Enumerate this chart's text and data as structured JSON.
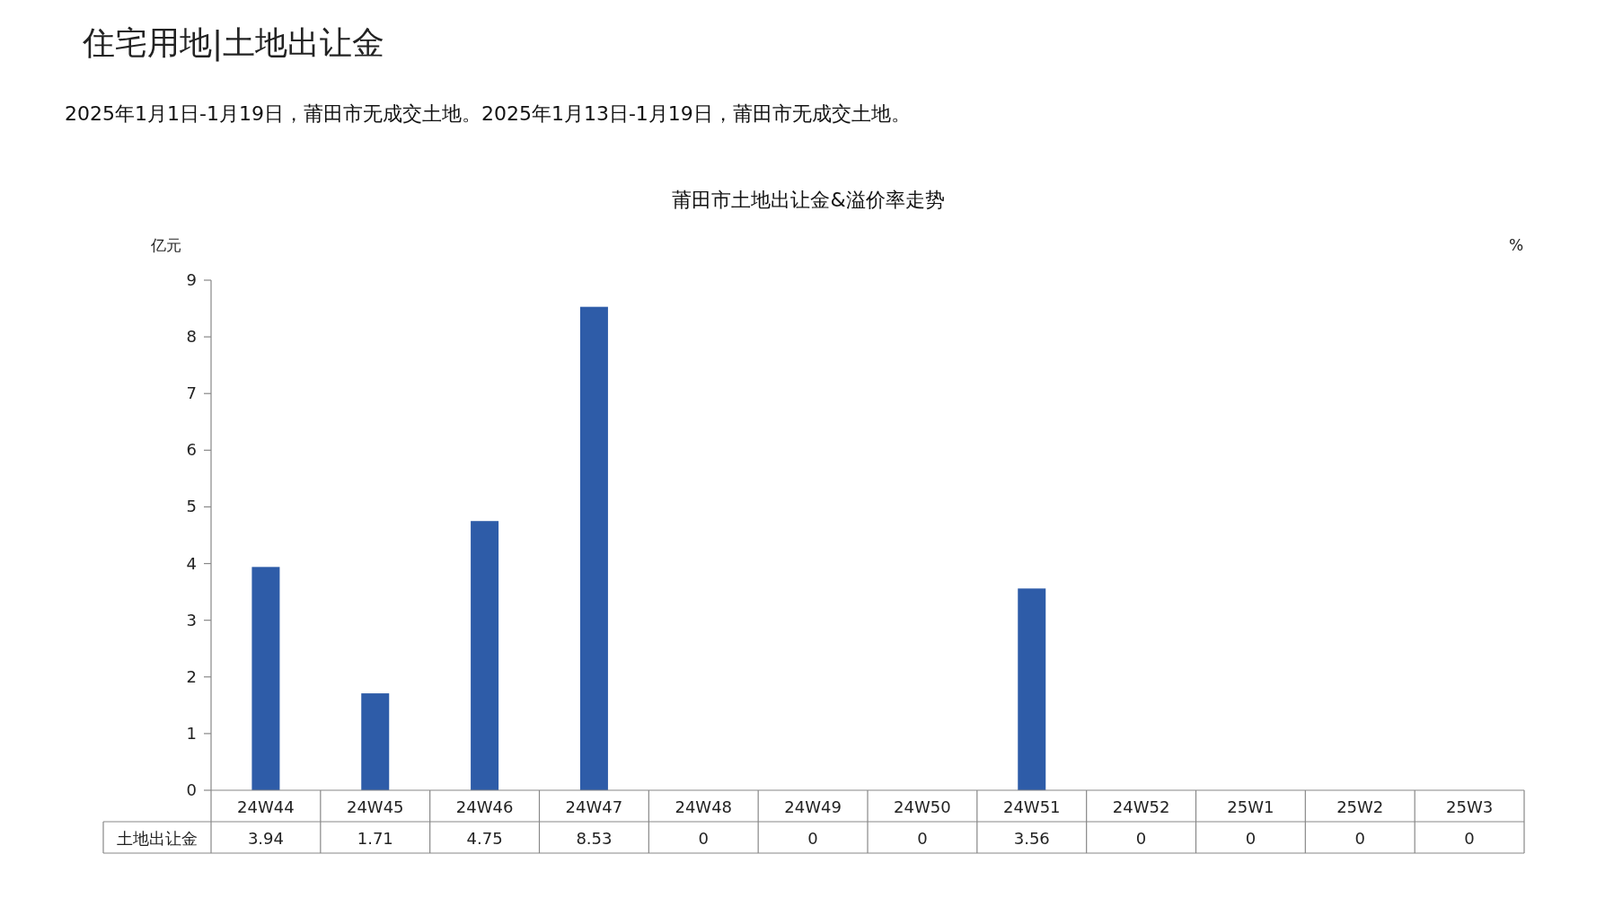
{
  "chart_data": {
    "type": "bar",
    "title": "莆田市土地出让金&溢价率走势",
    "ylabel": "亿元",
    "y2label": "%",
    "annotations": [
      "住宅用地|土地出让金",
      "2025年1月1日-1月19日，莆田市无成交土地。2025年1月13日-1月19日，莆田市无成交土地。"
    ],
    "categories": [
      "24W44",
      "24W45",
      "24W46",
      "24W47",
      "24W48",
      "24W49",
      "24W50",
      "24W51",
      "24W52",
      "25W1",
      "25W2",
      "25W3"
    ],
    "series": [
      {
        "name": "土地出让金",
        "color": "#2e5ca8",
        "values": [
          3.94,
          1.71,
          4.75,
          8.53,
          0,
          0,
          0,
          3.56,
          0,
          0,
          0,
          0
        ]
      }
    ],
    "ylim": [
      0,
      9
    ],
    "yticks": [
      0,
      1,
      2,
      3,
      4,
      5,
      6,
      7,
      8,
      9
    ],
    "data_labels": true
  }
}
